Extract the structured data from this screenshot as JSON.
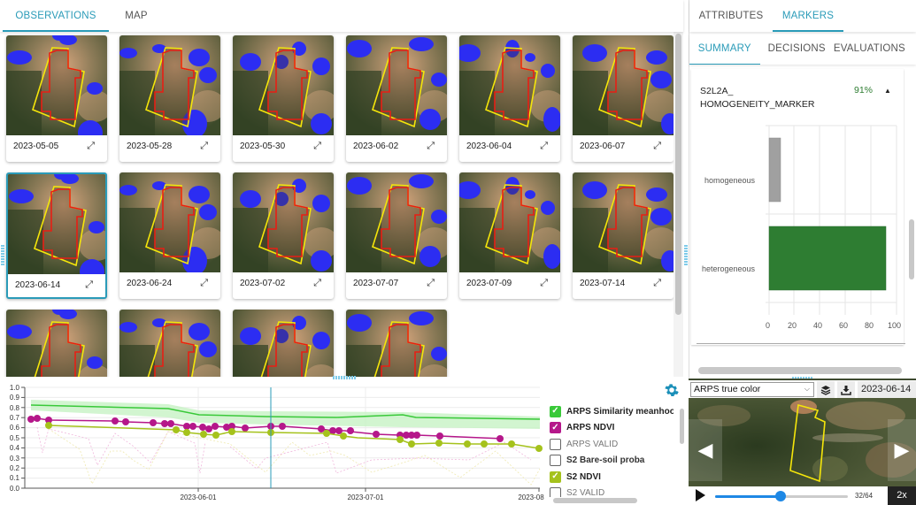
{
  "left_tabs": [
    {
      "label": "OBSERVATIONS",
      "active": true
    },
    {
      "label": "MAP",
      "active": false
    }
  ],
  "observations": [
    {
      "date": "2023-05-05",
      "selected": false
    },
    {
      "date": "2023-05-28",
      "selected": false
    },
    {
      "date": "2023-05-30",
      "selected": false
    },
    {
      "date": "2023-06-02",
      "selected": false
    },
    {
      "date": "2023-06-04",
      "selected": false
    },
    {
      "date": "2023-06-07",
      "selected": false
    },
    {
      "date": "2023-06-14",
      "selected": true
    },
    {
      "date": "2023-06-24",
      "selected": false
    },
    {
      "date": "2023-07-02",
      "selected": false
    },
    {
      "date": "2023-07-07",
      "selected": false
    },
    {
      "date": "2023-07-09",
      "selected": false
    },
    {
      "date": "2023-07-14",
      "selected": false
    },
    {
      "date": "",
      "selected": false
    },
    {
      "date": "",
      "selected": false
    },
    {
      "date": "",
      "selected": false
    },
    {
      "date": "",
      "selected": false
    }
  ],
  "expand_icon": "expand-icon",
  "legend": {
    "settings_icon": "gear-icon",
    "items": [
      {
        "label": "ARPS Similarity meanhood",
        "checked": true,
        "color": "#39c939"
      },
      {
        "label": "ARPS NDVI",
        "checked": true,
        "color": "#b5178a"
      },
      {
        "label": "ARPS VALID",
        "checked": false,
        "color": ""
      },
      {
        "label": "S2 Bare-soil proba",
        "checked": false,
        "color": ""
      },
      {
        "label": "S2 NDVI",
        "checked": true,
        "color": "#a5c21c"
      },
      {
        "label": "S2 VALID",
        "checked": false,
        "color": ""
      }
    ]
  },
  "chart_data": [
    {
      "type": "line",
      "title": "",
      "xlabel": "",
      "ylabel": "",
      "ylim": [
        0,
        1.0
      ],
      "yticks": [
        "0.0",
        "0.1",
        "0.2",
        "0.3",
        "0.4",
        "0.5",
        "0.6",
        "0.7",
        "0.8",
        "0.9",
        "1.0"
      ],
      "xticks": [
        "2023-06-01",
        "2023-07-01",
        "2023-08"
      ],
      "grid": true,
      "cursor_date": "2023-06-14",
      "series": [
        {
          "name": "ARPS Similarity meanhood",
          "color": "#39c939",
          "x": [
            "2023-05-03",
            "2023-05-15",
            "2023-05-25",
            "2023-06-01",
            "2023-06-10",
            "2023-06-20",
            "2023-07-01",
            "2023-07-05",
            "2023-07-15",
            "2023-08-01"
          ],
          "values": [
            0.84,
            0.82,
            0.8,
            0.74,
            0.73,
            0.73,
            0.7,
            0.71,
            0.69,
            0.68
          ]
        },
        {
          "name": "ARPS NDVI",
          "color": "#b5178a",
          "x": [
            "2023-05-01",
            "2023-05-03",
            "2023-05-07",
            "2023-05-20",
            "2023-05-22",
            "2023-05-27",
            "2023-05-29",
            "2023-05-30",
            "2023-05-31",
            "2023-06-01",
            "2023-06-03",
            "2023-06-04",
            "2023-06-06",
            "2023-06-08",
            "2023-06-09",
            "2023-06-11",
            "2023-06-14",
            "2023-06-16",
            "2023-06-21",
            "2023-06-23",
            "2023-06-24",
            "2023-06-26",
            "2023-07-01",
            "2023-07-06",
            "2023-07-07",
            "2023-07-08",
            "2023-07-09",
            "2023-07-13",
            "2023-07-24"
          ],
          "values": [
            0.68,
            0.68,
            0.67,
            0.66,
            0.65,
            0.65,
            0.64,
            0.64,
            0.61,
            0.61,
            0.6,
            0.58,
            0.6,
            0.59,
            0.6,
            0.59,
            0.61,
            0.6,
            0.57,
            0.56,
            0.56,
            0.55,
            0.51,
            0.53,
            0.53,
            0.53,
            0.53,
            0.52,
            0.5
          ]
        },
        {
          "name": "S2 NDVI",
          "color": "#a5c21c",
          "x": [
            "2023-05-07",
            "2023-05-29",
            "2023-05-31",
            "2023-06-02",
            "2023-06-05",
            "2023-06-08",
            "2023-06-14",
            "2023-06-24",
            "2023-07-02",
            "2023-07-07",
            "2023-07-09",
            "2023-07-14",
            "2023-07-19",
            "2023-07-22",
            "2023-07-27",
            "2023-08-01"
          ],
          "values": [
            0.62,
            0.6,
            0.55,
            0.52,
            0.5,
            0.53,
            0.52,
            0.52,
            0.47,
            0.45,
            0.42,
            0.43,
            0.42,
            0.42,
            0.41,
            0.38
          ]
        }
      ]
    },
    {
      "type": "bar",
      "orientation": "horizontal",
      "title": "S2L2A_HOMOGENEITY_MARKER",
      "categories": [
        "homogeneous",
        "heterogeneous"
      ],
      "values": [
        9,
        91
      ],
      "colors": [
        "#9e9e9e",
        "#2e7d32"
      ],
      "xlim": [
        0,
        100
      ],
      "xticks": [
        "0",
        "20",
        "40",
        "60",
        "80",
        "100"
      ],
      "grid": true
    }
  ],
  "right_tabs": [
    {
      "label": "ATTRIBUTES",
      "active": false
    },
    {
      "label": "MARKERS",
      "active": true
    }
  ],
  "right_subtabs": [
    {
      "label": "SUMMARY",
      "active": true
    },
    {
      "label": "DECISIONS",
      "active": false
    },
    {
      "label": "EVALUATIONS",
      "active": false
    }
  ],
  "marker": {
    "name_line1": "S2L2A_",
    "name_line2": "HOMOGENEITY_MARKER",
    "percent": "91%",
    "collapse_icon": "caret-up-icon",
    "bar_labels": [
      "homogeneous",
      "heterogeneous"
    ],
    "x_ticks": [
      "0",
      "20",
      "40",
      "60",
      "80",
      "100"
    ]
  },
  "viewer": {
    "layer": "ARPS true color",
    "date": "2023-06-14",
    "frame": "32/64",
    "speed": "2x",
    "layers_icon": "layers-icon",
    "download_icon": "download-icon"
  }
}
